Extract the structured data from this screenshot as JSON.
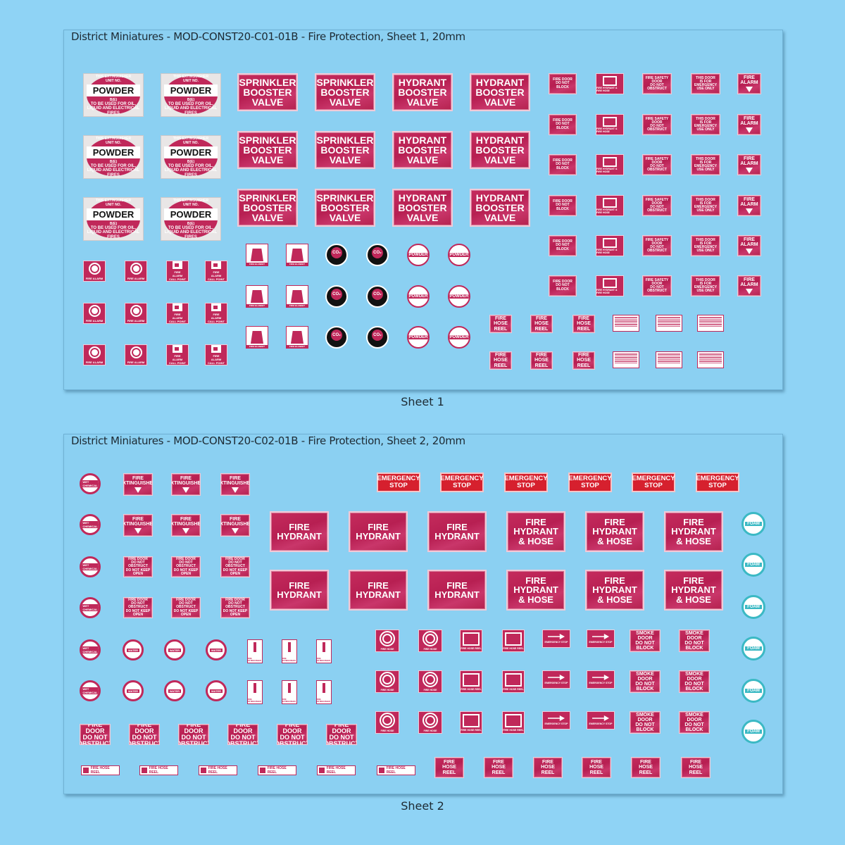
{
  "sheets": [
    {
      "title": "District Miniatures - MOD-CONST20-C01-01B - Fire Protection, Sheet 1, 20mm",
      "caption": "Sheet 1"
    },
    {
      "title": "District Miniatures - MOD-CONST20-C02-01B - Fire Protection, Sheet 2, 20mm",
      "caption": "Sheet 2"
    }
  ],
  "labels": {
    "this_extinguisher": "THIS EXTINGUISHER",
    "unit_no": "UNIT NO.",
    "powder": "POWDER",
    "be": "B(E)",
    "powder_use": "TO BE USED FOR OIL, LIQUID AND ELECTRICAL FIRES",
    "sprinkler_booster": [
      "SPRINKLER",
      "BOOSTER",
      "VALVE"
    ],
    "hydrant_booster": [
      "HYDRANT",
      "BOOSTER",
      "VALVE"
    ],
    "fire_door_do_not_block": [
      "FIRE DOOR",
      "DO NOT",
      "BLOCK"
    ],
    "fire_hydrant_hose_small": "FIRE HYDRANT & FIRE HOSE",
    "fire_safety_door": [
      "FIRE SAFETY DOOR",
      "DO NOT OBSTRUCT"
    ],
    "emergency_door": [
      "THIS DOOR",
      "IS FOR",
      "EMERGENCY",
      "USE ONLY"
    ],
    "fire_alarm_arrow": [
      "FIRE",
      "ALARM"
    ],
    "fire_alarm": "FIRE ALARM",
    "fire_alarm_call_point": [
      "FIRE",
      "ALARM",
      "CALL POINT"
    ],
    "fire_blanket": "FIRE BLANKET",
    "co2": "CO₂",
    "fire_hose_reel": [
      "FIRE",
      "HOSE",
      "REEL"
    ],
    "fire_extinguisher": [
      "FIRE",
      "EXTINGUISHER"
    ],
    "emergency_stop": [
      "EMERGENCY",
      "STOP"
    ],
    "fire_hydrant": [
      "FIRE",
      "HYDRANT"
    ],
    "fire_hydrant_hose": [
      "FIRE",
      "HYDRANT",
      "& HOSE"
    ],
    "foam": "FOAM",
    "wet_chemical": "WET CHEMICAL",
    "water": "WATER",
    "fire_door_keep_open": [
      "FIRE DOOR",
      "DO NOT OBSTRUCT",
      "DO NOT KEEP OPEN"
    ],
    "fire_door_obstruct": [
      "FIRE DOOR",
      "DO NOT OBSTRUCT"
    ],
    "fire_hose_reel_strip": "FIRE HOSE REEL",
    "fire_hose_reel_2": [
      "FIRE",
      "HOSE REEL"
    ],
    "fire_hose": "FIRE HOSE",
    "smoke_door": [
      "SMOKE DOOR",
      "DO NOT",
      "BLOCK"
    ],
    "extinguisher_small": "FIRE EXTINGUISHER"
  },
  "colors": {
    "background": "#8fd3f5",
    "sign_red": "#c0285a",
    "estop_red": "#d6202e",
    "foam_teal": "#3bb9c4"
  }
}
